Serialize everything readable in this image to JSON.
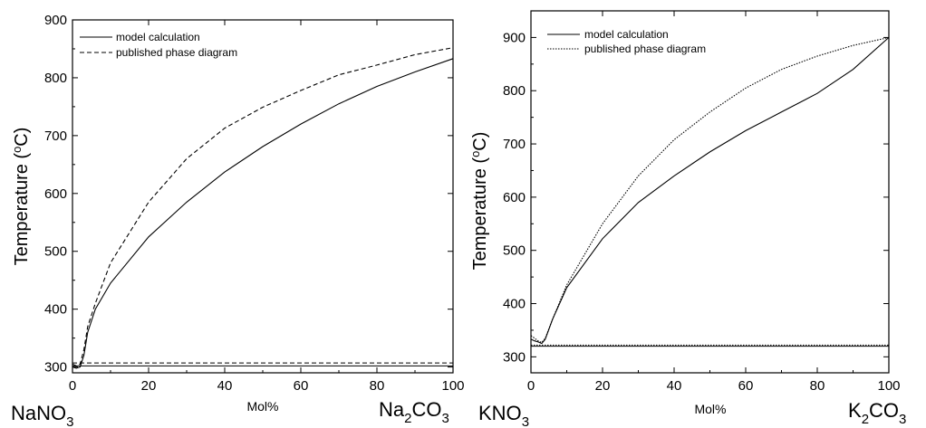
{
  "chart_data": [
    {
      "type": "line",
      "xlabel": "Mol%",
      "ylabel": "Temperature (",
      "ylabel_sup": "o",
      "ylabel_unit": "C)",
      "xlim": [
        0,
        100
      ],
      "ylim": [
        290,
        900
      ],
      "x_ticks": [
        0,
        20,
        40,
        60,
        80,
        100
      ],
      "y_ticks": [
        300,
        400,
        500,
        600,
        700,
        800,
        900
      ],
      "left_component": {
        "main": "NaNO",
        "sub": "3",
        "rest": ""
      },
      "right_component": {
        "main": "Na",
        "sub": "2",
        "rest": "CO",
        "sub2": "3"
      },
      "legend_position": "top-left",
      "series": [
        {
          "name": "model calculation",
          "style": "solid",
          "x": [
            0,
            1,
            2,
            3,
            4,
            6,
            10,
            20,
            30,
            40,
            50,
            60,
            70,
            80,
            90,
            100
          ],
          "y": [
            300,
            298,
            300,
            320,
            360,
            400,
            445,
            525,
            585,
            637,
            681,
            720,
            755,
            785,
            810,
            833
          ]
        },
        {
          "name": "published phase diagram",
          "style": "dashed",
          "x": [
            0,
            1,
            2,
            3,
            4,
            6,
            10,
            20,
            30,
            40,
            50,
            60,
            70,
            80,
            90,
            100
          ],
          "y": [
            305,
            302,
            305,
            330,
            370,
            410,
            480,
            585,
            660,
            713,
            749,
            778,
            805,
            822,
            840,
            852
          ]
        }
      ],
      "horizontal_lines": [
        {
          "y": 302,
          "style": "solid"
        },
        {
          "y": 307,
          "style": "dashed"
        }
      ]
    },
    {
      "type": "line",
      "xlabel": "Mol%",
      "ylabel": "Temperature (",
      "ylabel_sup": "o",
      "ylabel_unit": "C)",
      "xlim": [
        0,
        100
      ],
      "ylim": [
        270,
        950
      ],
      "x_ticks": [
        0,
        20,
        40,
        60,
        80,
        100
      ],
      "y_ticks": [
        300,
        400,
        500,
        600,
        700,
        800,
        900
      ],
      "left_component": {
        "main": "KNO",
        "sub": "3",
        "rest": ""
      },
      "right_component": {
        "main": "K",
        "sub": "2",
        "rest": "CO",
        "sub2": "3"
      },
      "legend_position": "top-left",
      "series": [
        {
          "name": "model calculation",
          "style": "solid",
          "x": [
            0,
            1,
            2,
            3,
            4,
            6,
            10,
            20,
            30,
            40,
            50,
            60,
            70,
            80,
            90,
            100
          ],
          "y": [
            333,
            330,
            328,
            325,
            333,
            370,
            430,
            522,
            590,
            640,
            685,
            725,
            760,
            795,
            840,
            900
          ]
        },
        {
          "name": "published phase diagram",
          "style": "dotted",
          "x": [
            0,
            1,
            2,
            3,
            4,
            6,
            10,
            20,
            30,
            40,
            50,
            60,
            70,
            80,
            90,
            100
          ],
          "y": [
            340,
            335,
            330,
            327,
            335,
            370,
            435,
            550,
            640,
            708,
            760,
            805,
            840,
            865,
            885,
            900
          ]
        }
      ],
      "horizontal_lines": [
        {
          "y": 320,
          "style": "solid"
        },
        {
          "y": 322,
          "style": "dotted"
        }
      ]
    }
  ]
}
